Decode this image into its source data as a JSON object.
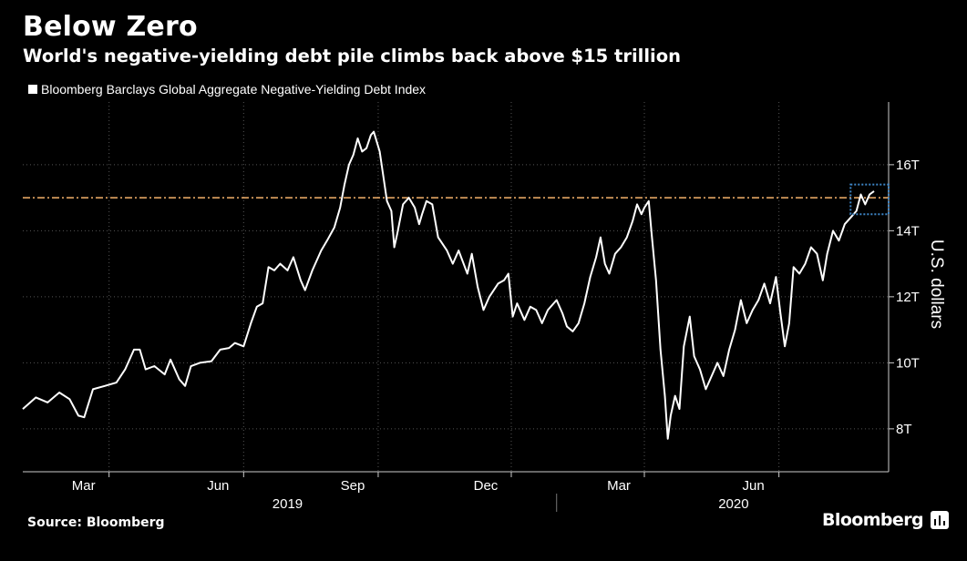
{
  "title": "Below Zero",
  "subtitle": "World's negative-yielding debt pile climbs back above $15 trillion",
  "source": "Source: Bloomberg",
  "brand": "Bloomberg",
  "colors": {
    "line": "#ffffff",
    "threshold": "#f6b26b",
    "highlight": "#3d85c6",
    "grid": "#555555"
  },
  "chart_data": {
    "type": "line",
    "title": "Below Zero",
    "subtitle": "World's negative-yielding debt pile climbs back above $15 trillion",
    "ylabel": "U.S. dollars",
    "ylim": [
      6.7,
      17.9
    ],
    "yticks": [
      8,
      10,
      12,
      14,
      16
    ],
    "ytick_labels": [
      "8T",
      "10T",
      "12T",
      "14T",
      "16T"
    ],
    "xlim": [
      "2019-01-01",
      "2020-08-15"
    ],
    "month_ticks": [
      {
        "date": "2019-03-01",
        "label": "Mar"
      },
      {
        "date": "2019-06-01",
        "label": "Jun"
      },
      {
        "date": "2019-09-01",
        "label": "Sep"
      },
      {
        "date": "2019-12-01",
        "label": "Dec"
      },
      {
        "date": "2020-03-01",
        "label": "Mar"
      },
      {
        "date": "2020-06-01",
        "label": "Jun"
      }
    ],
    "year_labels": [
      {
        "date": "2019-07-01",
        "label": "2019"
      },
      {
        "date": "2020-05-01",
        "label": "2020"
      }
    ],
    "year_divider": "2020-01-01",
    "reference_line": 15.0,
    "highlight_box": {
      "x0": "2020-07-20",
      "x1": "2020-08-15",
      "y0": 14.5,
      "y1": 15.4
    },
    "legend": "Bloomberg Barclays Global Aggregate Negative-Yielding Debt Index",
    "legend_position": "top-left",
    "grid": true,
    "series": [
      {
        "name": "Bloomberg Barclays Global Aggregate Negative-Yielding Debt Index",
        "points": [
          [
            "2019-01-01",
            8.6
          ],
          [
            "2019-01-10",
            8.95
          ],
          [
            "2019-01-18",
            8.8
          ],
          [
            "2019-01-26",
            9.1
          ],
          [
            "2019-02-02",
            8.9
          ],
          [
            "2019-02-08",
            8.4
          ],
          [
            "2019-02-12",
            8.35
          ],
          [
            "2019-02-18",
            9.2
          ],
          [
            "2019-02-26",
            9.3
          ],
          [
            "2019-03-06",
            9.4
          ],
          [
            "2019-03-12",
            9.8
          ],
          [
            "2019-03-18",
            10.4
          ],
          [
            "2019-03-22",
            10.4
          ],
          [
            "2019-03-26",
            9.8
          ],
          [
            "2019-04-01",
            9.9
          ],
          [
            "2019-04-08",
            9.65
          ],
          [
            "2019-04-12",
            10.1
          ],
          [
            "2019-04-18",
            9.5
          ],
          [
            "2019-04-22",
            9.3
          ],
          [
            "2019-04-26",
            9.9
          ],
          [
            "2019-05-02",
            10.0
          ],
          [
            "2019-05-10",
            10.05
          ],
          [
            "2019-05-16",
            10.4
          ],
          [
            "2019-05-22",
            10.45
          ],
          [
            "2019-05-26",
            10.6
          ],
          [
            "2019-06-01",
            10.5
          ],
          [
            "2019-06-06",
            11.2
          ],
          [
            "2019-06-10",
            11.7
          ],
          [
            "2019-06-14",
            11.8
          ],
          [
            "2019-06-18",
            12.9
          ],
          [
            "2019-06-22",
            12.8
          ],
          [
            "2019-06-26",
            13.0
          ],
          [
            "2019-07-01",
            12.8
          ],
          [
            "2019-07-05",
            13.2
          ],
          [
            "2019-07-10",
            12.5
          ],
          [
            "2019-07-13",
            12.2
          ],
          [
            "2019-07-18",
            12.8
          ],
          [
            "2019-07-24",
            13.4
          ],
          [
            "2019-07-28",
            13.7
          ],
          [
            "2019-08-02",
            14.1
          ],
          [
            "2019-08-06",
            14.7
          ],
          [
            "2019-08-09",
            15.4
          ],
          [
            "2019-08-12",
            16.0
          ],
          [
            "2019-08-15",
            16.3
          ],
          [
            "2019-08-18",
            16.8
          ],
          [
            "2019-08-21",
            16.4
          ],
          [
            "2019-08-24",
            16.5
          ],
          [
            "2019-08-27",
            16.9
          ],
          [
            "2019-08-29",
            17.0
          ],
          [
            "2019-09-02",
            16.4
          ],
          [
            "2019-09-04",
            15.8
          ],
          [
            "2019-09-07",
            14.9
          ],
          [
            "2019-09-10",
            14.6
          ],
          [
            "2019-09-12",
            13.5
          ],
          [
            "2019-09-14",
            13.9
          ],
          [
            "2019-09-18",
            14.8
          ],
          [
            "2019-09-22",
            15.0
          ],
          [
            "2019-09-26",
            14.7
          ],
          [
            "2019-09-29",
            14.2
          ],
          [
            "2019-10-01",
            14.5
          ],
          [
            "2019-10-04",
            14.9
          ],
          [
            "2019-10-08",
            14.8
          ],
          [
            "2019-10-12",
            13.8
          ],
          [
            "2019-10-18",
            13.4
          ],
          [
            "2019-10-22",
            13.0
          ],
          [
            "2019-10-26",
            13.4
          ],
          [
            "2019-11-01",
            12.7
          ],
          [
            "2019-11-04",
            13.3
          ],
          [
            "2019-11-08",
            12.3
          ],
          [
            "2019-11-12",
            11.6
          ],
          [
            "2019-11-16",
            12.0
          ],
          [
            "2019-11-22",
            12.4
          ],
          [
            "2019-11-26",
            12.5
          ],
          [
            "2019-11-29",
            12.7
          ],
          [
            "2019-12-02",
            11.4
          ],
          [
            "2019-12-05",
            11.8
          ],
          [
            "2019-12-10",
            11.3
          ],
          [
            "2019-12-14",
            11.7
          ],
          [
            "2019-12-18",
            11.6
          ],
          [
            "2019-12-22",
            11.2
          ],
          [
            "2019-12-26",
            11.6
          ],
          [
            "2020-01-01",
            11.9
          ],
          [
            "2020-01-05",
            11.5
          ],
          [
            "2020-01-08",
            11.1
          ],
          [
            "2020-01-12",
            10.95
          ],
          [
            "2020-01-16",
            11.2
          ],
          [
            "2020-01-20",
            11.8
          ],
          [
            "2020-01-24",
            12.6
          ],
          [
            "2020-01-28",
            13.2
          ],
          [
            "2020-01-31",
            13.8
          ],
          [
            "2020-02-03",
            13.0
          ],
          [
            "2020-02-06",
            12.7
          ],
          [
            "2020-02-10",
            13.3
          ],
          [
            "2020-02-14",
            13.5
          ],
          [
            "2020-02-18",
            13.8
          ],
          [
            "2020-02-22",
            14.3
          ],
          [
            "2020-02-25",
            14.8
          ],
          [
            "2020-02-28",
            14.5
          ],
          [
            "2020-03-01",
            14.7
          ],
          [
            "2020-03-04",
            14.9
          ],
          [
            "2020-03-06",
            13.9
          ],
          [
            "2020-03-09",
            12.5
          ],
          [
            "2020-03-12",
            10.4
          ],
          [
            "2020-03-15",
            9.0
          ],
          [
            "2020-03-17",
            7.7
          ],
          [
            "2020-03-19",
            8.4
          ],
          [
            "2020-03-22",
            9.0
          ],
          [
            "2020-03-25",
            8.6
          ],
          [
            "2020-03-28",
            10.5
          ],
          [
            "2020-04-01",
            11.4
          ],
          [
            "2020-04-04",
            10.2
          ],
          [
            "2020-04-08",
            9.8
          ],
          [
            "2020-04-12",
            9.2
          ],
          [
            "2020-04-16",
            9.6
          ],
          [
            "2020-04-20",
            10.0
          ],
          [
            "2020-04-24",
            9.6
          ],
          [
            "2020-04-28",
            10.4
          ],
          [
            "2020-05-02",
            11.0
          ],
          [
            "2020-05-06",
            11.9
          ],
          [
            "2020-05-10",
            11.2
          ],
          [
            "2020-05-14",
            11.6
          ],
          [
            "2020-05-18",
            11.9
          ],
          [
            "2020-05-22",
            12.4
          ],
          [
            "2020-05-26",
            11.8
          ],
          [
            "2020-05-30",
            12.6
          ],
          [
            "2020-06-02",
            11.5
          ],
          [
            "2020-06-05",
            10.5
          ],
          [
            "2020-06-08",
            11.2
          ],
          [
            "2020-06-11",
            12.9
          ],
          [
            "2020-06-15",
            12.7
          ],
          [
            "2020-06-19",
            13.0
          ],
          [
            "2020-06-23",
            13.5
          ],
          [
            "2020-06-27",
            13.3
          ],
          [
            "2020-07-01",
            12.5
          ],
          [
            "2020-07-04",
            13.3
          ],
          [
            "2020-07-08",
            14.0
          ],
          [
            "2020-07-12",
            13.7
          ],
          [
            "2020-07-16",
            14.2
          ],
          [
            "2020-07-20",
            14.4
          ],
          [
            "2020-07-24",
            14.6
          ],
          [
            "2020-07-27",
            15.1
          ],
          [
            "2020-07-30",
            14.8
          ],
          [
            "2020-08-02",
            15.1
          ],
          [
            "2020-08-05",
            15.2
          ]
        ]
      }
    ]
  }
}
